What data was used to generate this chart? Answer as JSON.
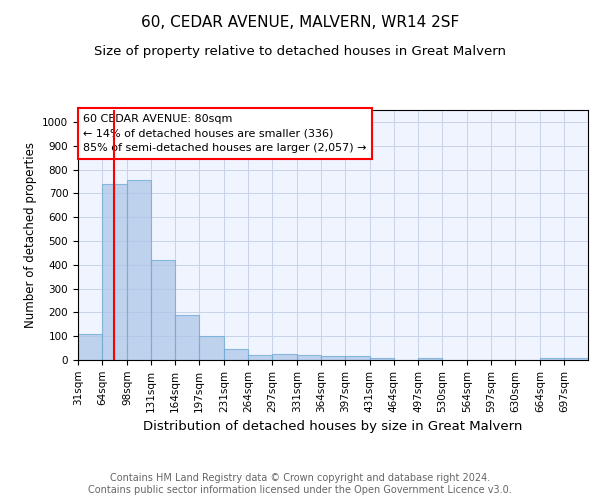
{
  "title": "60, CEDAR AVENUE, MALVERN, WR14 2SF",
  "subtitle": "Size of property relative to detached houses in Great Malvern",
  "xlabel": "Distribution of detached houses by size in Great Malvern",
  "ylabel": "Number of detached properties",
  "categories": [
    "31sqm",
    "64sqm",
    "98sqm",
    "131sqm",
    "164sqm",
    "197sqm",
    "231sqm",
    "264sqm",
    "297sqm",
    "331sqm",
    "364sqm",
    "397sqm",
    "431sqm",
    "464sqm",
    "497sqm",
    "530sqm",
    "564sqm",
    "597sqm",
    "630sqm",
    "664sqm",
    "697sqm"
  ],
  "values": [
    110,
    740,
    755,
    420,
    190,
    100,
    45,
    22,
    25,
    20,
    15,
    15,
    8,
    0,
    8,
    0,
    0,
    0,
    0,
    8,
    8
  ],
  "bar_color": "#aec6e8",
  "bar_edge_color": "#6aaad4",
  "bar_alpha": 0.75,
  "red_line_x": 80,
  "bin_edges": [
    31,
    64,
    98,
    131,
    164,
    197,
    231,
    264,
    297,
    331,
    364,
    397,
    431,
    464,
    497,
    530,
    564,
    597,
    630,
    664,
    697,
    730
  ],
  "annotation_box_text": "60 CEDAR AVENUE: 80sqm\n← 14% of detached houses are smaller (336)\n85% of semi-detached houses are larger (2,057) →",
  "ylim": [
    0,
    1050
  ],
  "yticks": [
    0,
    100,
    200,
    300,
    400,
    500,
    600,
    700,
    800,
    900,
    1000
  ],
  "background_color": "#f0f4ff",
  "grid_color": "#c8d4e8",
  "footer_text": "Contains HM Land Registry data © Crown copyright and database right 2024.\nContains public sector information licensed under the Open Government Licence v3.0.",
  "title_fontsize": 11,
  "subtitle_fontsize": 9.5,
  "xlabel_fontsize": 9.5,
  "ylabel_fontsize": 8.5,
  "annotation_fontsize": 8,
  "footer_fontsize": 7,
  "tick_fontsize": 7.5
}
